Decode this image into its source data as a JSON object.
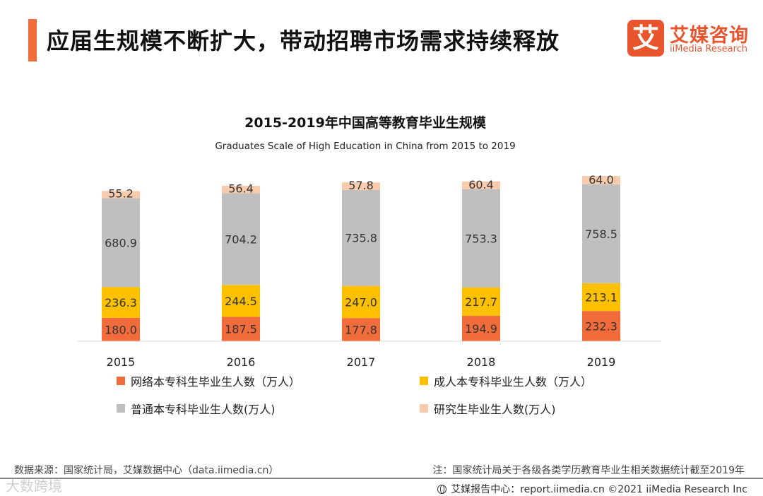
{
  "header": {
    "title": "应届生规模不断扩大，带动招聘市场需求持续释放",
    "accent_color": "#f26b3a"
  },
  "logo": {
    "mark_text": "艾",
    "name_cn": "艾媒咨询",
    "name_en": "iiMedia Research",
    "color": "#e8552d",
    "icon": "iimedia-logo-icon"
  },
  "chart_data": {
    "type": "bar",
    "stacked": true,
    "title": "2015-2019年中国高等教育毕业生规模",
    "subtitle": "Graduates Scale of High Education in China from 2015  to 2019",
    "categories": [
      "2015",
      "2016",
      "2017",
      "2018",
      "2019"
    ],
    "series": [
      {
        "name": "网络本专科生毕业生人数（万人）",
        "color": "#f26b3a",
        "values": [
          180.0,
          187.5,
          177.8,
          194.9,
          232.3
        ]
      },
      {
        "name": "成人本专科毕业生人数（万人）",
        "color": "#ffc000",
        "values": [
          236.3,
          244.5,
          247.0,
          217.7,
          213.1
        ]
      },
      {
        "name": "普通本专科毕业生人数(万人)",
        "color": "#bfbfbf",
        "values": [
          680.9,
          704.2,
          735.8,
          753.3,
          758.5
        ]
      },
      {
        "name": "研究生毕业生人数(万人)",
        "color": "#f8cbad",
        "values": [
          55.2,
          56.4,
          57.8,
          60.4,
          64.0
        ]
      }
    ],
    "legend_position": "bottom",
    "grid": false
  },
  "footer": {
    "source": "数据来源：国家统计局，艾媒数据中心（data.iimedia.cn）",
    "note": "注：国家统计局关于各级各类学历教育毕业生相关数据统计截至2019年",
    "report": "艾媒报告中心：report.iimedia.cn ©2021  iiMedia Research  Inc",
    "watermark": "大数跨境"
  }
}
